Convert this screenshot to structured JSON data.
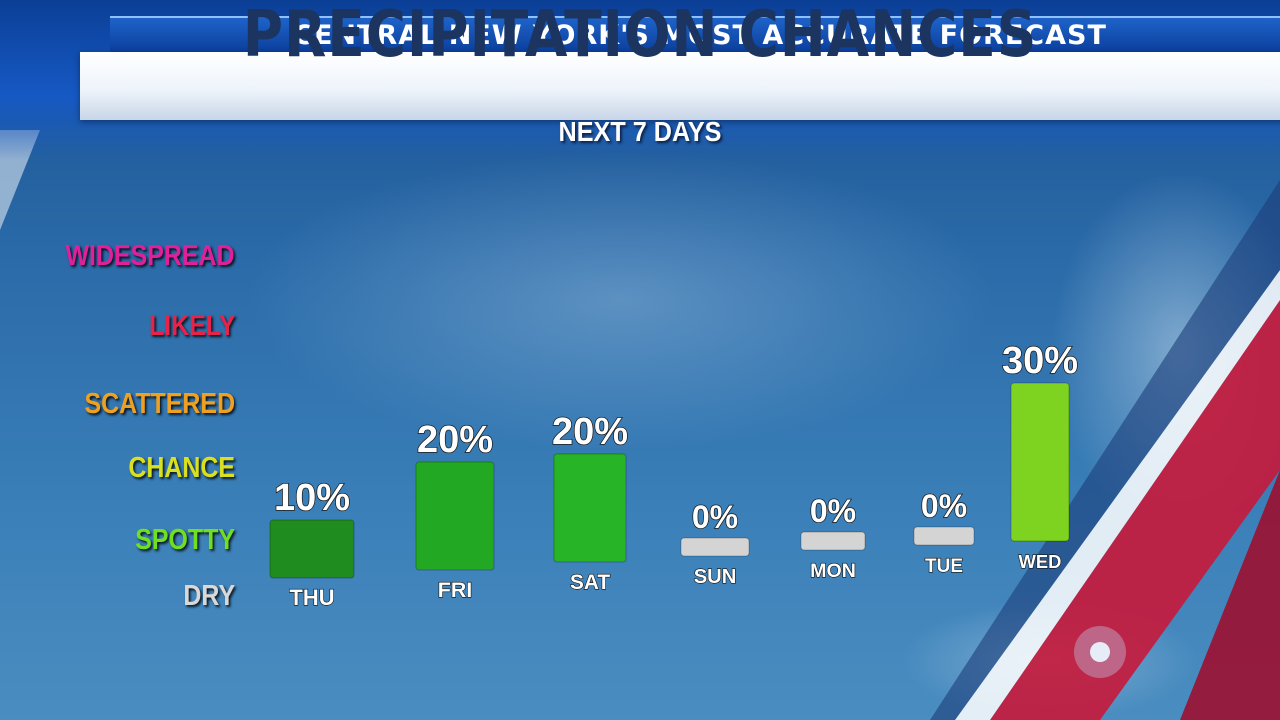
{
  "header": {
    "tagline": "CENTRAL NEW YORK'S MOST ACCURATE FORECAST",
    "title": "PRECIPITATION CHANCES",
    "subtitle": "NEXT 7 DAYS"
  },
  "levels": [
    {
      "label": "WIDESPREAD",
      "color": "#e0209a"
    },
    {
      "label": "LIKELY",
      "color": "#e8234a"
    },
    {
      "label": "SCATTERED",
      "color": "#f0a020"
    },
    {
      "label": "CHANCE",
      "color": "#d8e020"
    },
    {
      "label": "SPOTTY",
      "color": "#6ee020"
    },
    {
      "label": "DRY",
      "color": "#d8d8d8"
    }
  ],
  "chart_data": {
    "type": "bar",
    "categories": [
      "THU",
      "FRI",
      "SAT",
      "SUN",
      "MON",
      "TUE",
      "WED"
    ],
    "values": [
      10,
      20,
      20,
      0,
      0,
      0,
      30
    ],
    "value_labels": [
      "10%",
      "20%",
      "20%",
      "0%",
      "0%",
      "0%",
      "30%"
    ],
    "bar_colors": [
      "#1e8c1e",
      "#23a823",
      "#27b427",
      "#d4d4d4",
      "#d4d4d4",
      "#d4d4d4",
      "#7ed321"
    ],
    "title": "PRECIPITATION CHANCES",
    "subtitle": "NEXT 7 DAYS",
    "unit": "%",
    "ylim": [
      0,
      30
    ]
  }
}
